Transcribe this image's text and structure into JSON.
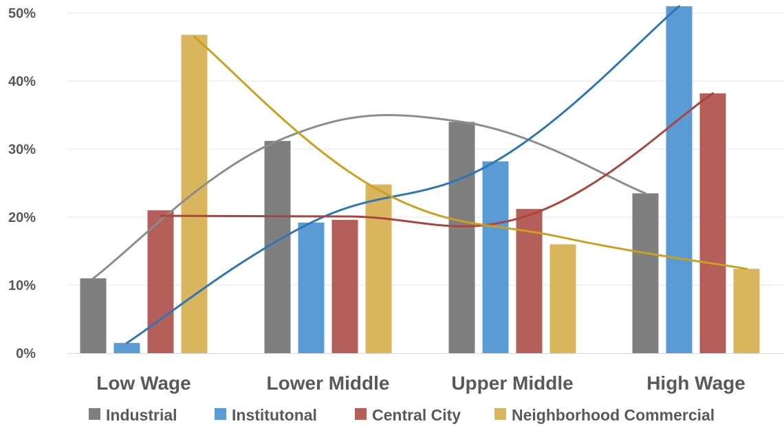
{
  "chart_data": {
    "type": "bar",
    "categories": [
      "Low Wage",
      "Lower Middle",
      "Upper Middle",
      "High Wage"
    ],
    "series": [
      {
        "name": "Industrial",
        "color": "#7f7f7f",
        "values": [
          11.0,
          31.2,
          34.0,
          23.5
        ]
      },
      {
        "name": "Institutonal",
        "color": "#5b9bd5",
        "values": [
          1.5,
          19.2,
          28.2,
          51.0
        ]
      },
      {
        "name": "Central City",
        "color": "#b55f5a",
        "values": [
          21.0,
          19.6,
          21.2,
          38.2
        ]
      },
      {
        "name": "Neighborhood Commercial",
        "color": "#d9b55e",
        "values": [
          46.8,
          24.8,
          16.0,
          12.4
        ]
      }
    ],
    "trendlines": [
      {
        "series": "Industrial",
        "color": "#8c8c8c",
        "values": [
          11.0,
          31.2,
          34.0,
          23.5
        ]
      },
      {
        "series": "Institutonal",
        "color": "#2e75b6",
        "values": [
          1.5,
          19.2,
          28.2,
          51.0
        ]
      },
      {
        "series": "Central City",
        "color": "#a9443f",
        "values": [
          20.2,
          20.1,
          20.3,
          38.2
        ]
      },
      {
        "series": "Neighborhood Commercial",
        "color": "#c9a11e",
        "values": [
          46.5,
          24.0,
          17.0,
          12.4
        ]
      }
    ],
    "y_ticks": [
      "0%",
      "10%",
      "20%",
      "30%",
      "40%",
      "50%"
    ],
    "ylim": [
      0,
      51
    ],
    "grid": true,
    "legend_position": "bottom"
  }
}
